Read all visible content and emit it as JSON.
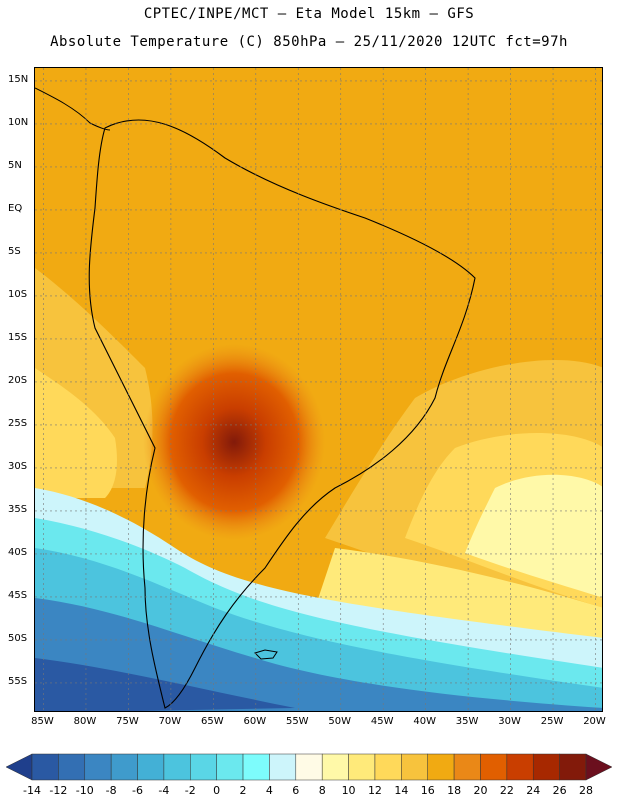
{
  "header": {
    "line1": "CPTEC/INPE/MCT —  Eta Model 15km — GFS",
    "line2": "Absolute Temperature (C) 850hPa — 25/11/2020 12UTC fct=97h"
  },
  "map": {
    "projection": "equirectangular",
    "lon_range": [
      -86,
      -19
    ],
    "lat_range": [
      -58.5,
      16.5
    ],
    "lat_labels": [
      "15N",
      "10N",
      "5N",
      "EQ",
      "5S",
      "10S",
      "15S",
      "20S",
      "25S",
      "30S",
      "35S",
      "40S",
      "45S",
      "50S",
      "55S"
    ],
    "lon_labels": [
      "85W",
      "80W",
      "75W",
      "70W",
      "65W",
      "60W",
      "55W",
      "50W",
      "45W",
      "40W",
      "35W",
      "30W",
      "25W",
      "20W"
    ],
    "grid": "dashed",
    "field": "temperature_850hPa",
    "field_units": "C"
  },
  "colorbar": {
    "labels": [
      "-14",
      "-12",
      "-10",
      "-8",
      "-6",
      "-4",
      "-2",
      "0",
      "2",
      "4",
      "6",
      "8",
      "10",
      "12",
      "14",
      "16",
      "18",
      "20",
      "22",
      "24",
      "26",
      "28"
    ],
    "colors": [
      "#1f3f8c",
      "#2a59a3",
      "#336fb3",
      "#3b86c2",
      "#3f9bcc",
      "#43b0d6",
      "#4cc4de",
      "#5ad6e6",
      "#6be8ee",
      "#7dfcfc",
      "#cdf5fb",
      "#fffbe6",
      "#fff9a8",
      "#ffea7a",
      "#ffd95a",
      "#f7c33d",
      "#f1aa12",
      "#ea8817",
      "#e15f00",
      "#c93e00",
      "#a72800",
      "#821a0a",
      "#6b0f1e"
    ]
  }
}
